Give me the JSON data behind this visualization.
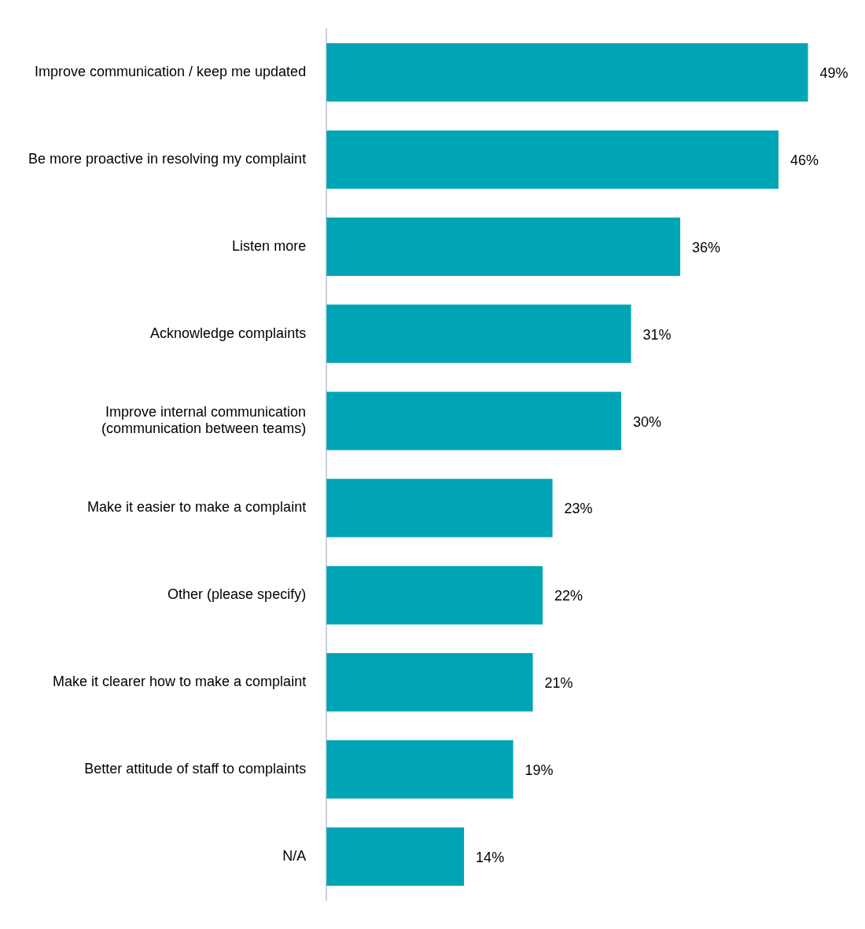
{
  "chart_data": {
    "type": "bar",
    "orientation": "horizontal",
    "categories": [
      "Improve communication / keep me updated",
      "Be more proactive in resolving my complaint",
      "Listen more",
      "Acknowledge complaints",
      "Improve internal communication (communication between teams)",
      "Make it easier to make a complaint",
      "Other (please specify)",
      "Make it clearer how to make a complaint",
      "Better attitude of staff to complaints",
      "N/A"
    ],
    "values": [
      49,
      46,
      36,
      31,
      30,
      23,
      22,
      21,
      19,
      14
    ],
    "value_labels": [
      "49%",
      "46%",
      "36%",
      "31%",
      "30%",
      "23%",
      "22%",
      "21%",
      "19%",
      "14%"
    ],
    "color": "#00a5b5"
  }
}
